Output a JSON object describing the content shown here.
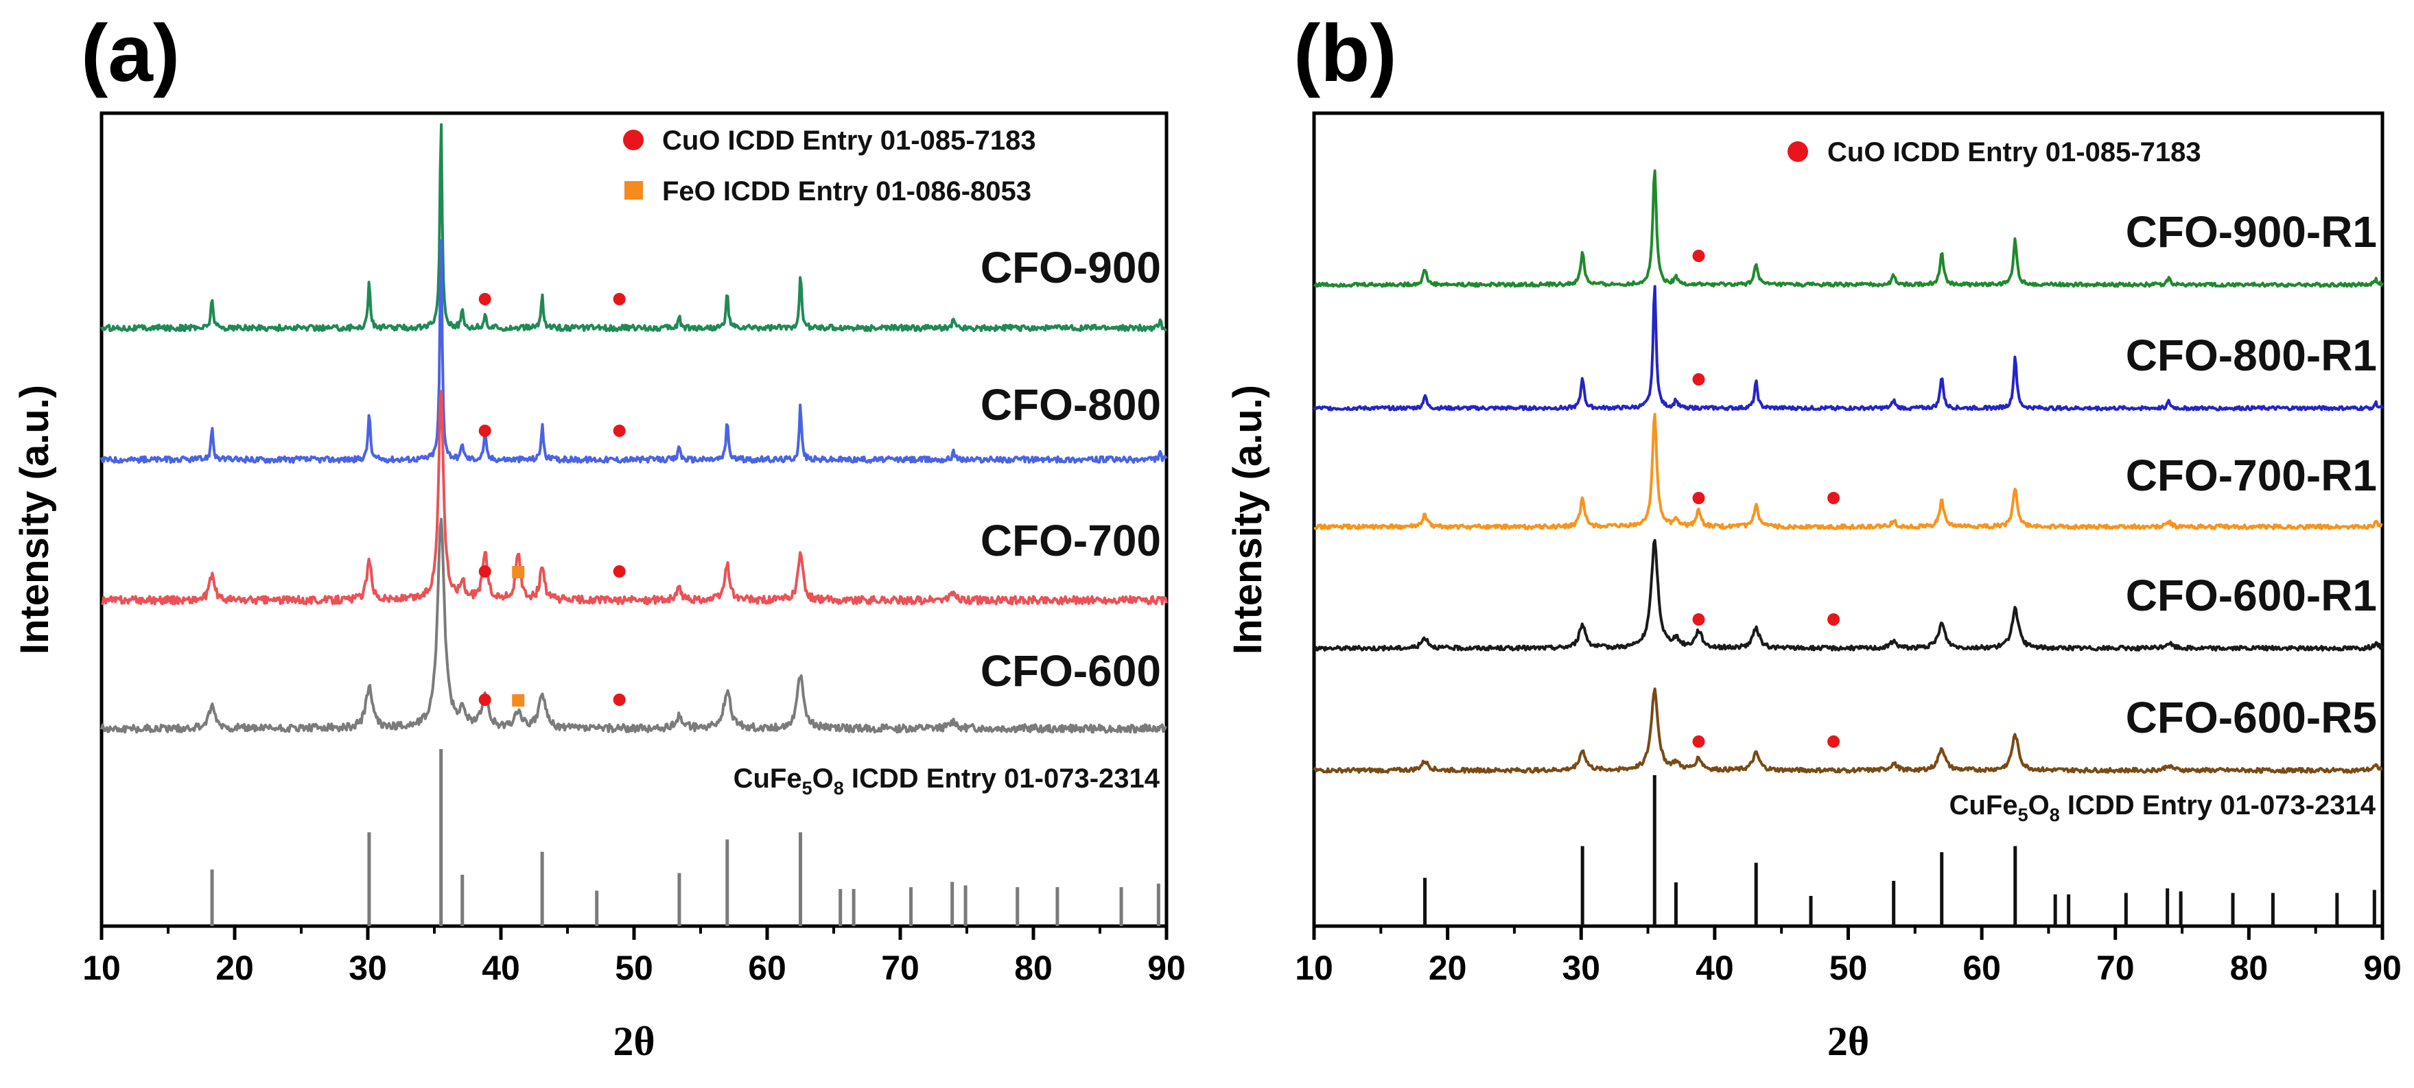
{
  "chart_data": [
    {
      "panel_label": "(a)",
      "type": "line",
      "title": "",
      "xlabel": "2θ",
      "ylabel": "Intensity (a.u.)",
      "xlim": [
        10,
        90
      ],
      "x_ticks": [
        10,
        20,
        30,
        40,
        50,
        60,
        70,
        80,
        90
      ],
      "legend": [
        {
          "marker": "circle",
          "color": "#e8161b",
          "text": "CuO ICDD Entry 01-085-7183"
        },
        {
          "marker": "square",
          "color": "#f58a1f",
          "text": "FeO ICDD Entry 01-086-8053"
        }
      ],
      "series": [
        {
          "name": "CFO-900",
          "color": "#1f8a55",
          "peaks": [
            [
              18.3,
              0.13
            ],
            [
              30.1,
              0.2
            ],
            [
              35.5,
              0.88
            ],
            [
              37.1,
              0.07
            ],
            [
              38.8,
              0.06
            ],
            [
              43.1,
              0.14
            ],
            [
              53.4,
              0.05
            ],
            [
              57.0,
              0.15
            ],
            [
              62.5,
              0.23
            ],
            [
              74.0,
              0.04
            ],
            [
              89.5,
              0.03
            ]
          ],
          "width": 0.1,
          "noise": 0.012,
          "cuo_markers": [
            38.8,
            48.9
          ],
          "feo_markers": []
        },
        {
          "name": "CFO-800",
          "color": "#4a63e6",
          "peaks": [
            [
              18.3,
              0.14
            ],
            [
              30.1,
              0.2
            ],
            [
              35.5,
              0.95
            ],
            [
              37.1,
              0.07
            ],
            [
              38.8,
              0.12
            ],
            [
              43.1,
              0.15
            ],
            [
              53.4,
              0.06
            ],
            [
              57.0,
              0.17
            ],
            [
              62.5,
              0.23
            ],
            [
              74.0,
              0.04
            ],
            [
              89.5,
              0.03
            ]
          ],
          "width": 0.1,
          "noise": 0.012,
          "cuo_markers": [
            38.8,
            48.9
          ],
          "feo_markers": []
        },
        {
          "name": "CFO-700",
          "color": "#ec5155",
          "peaks": [
            [
              18.3,
              0.11
            ],
            [
              30.1,
              0.16
            ],
            [
              35.5,
              0.88
            ],
            [
              37.1,
              0.07
            ],
            [
              38.8,
              0.2
            ],
            [
              41.3,
              0.19
            ],
            [
              43.1,
              0.13
            ],
            [
              53.4,
              0.05
            ],
            [
              57.0,
              0.15
            ],
            [
              62.5,
              0.2
            ],
            [
              74.0,
              0.03
            ]
          ],
          "width": 0.22,
          "noise": 0.016,
          "cuo_markers": [
            38.8,
            48.9
          ],
          "feo_markers": [
            41.3
          ]
        },
        {
          "name": "CFO-600",
          "color": "#7b7b7b",
          "peaks": [
            [
              18.3,
              0.09
            ],
            [
              30.1,
              0.17
            ],
            [
              35.5,
              0.88
            ],
            [
              37.1,
              0.06
            ],
            [
              38.8,
              0.13
            ],
            [
              41.3,
              0.07
            ],
            [
              43.1,
              0.14
            ],
            [
              53.4,
              0.05
            ],
            [
              57.0,
              0.16
            ],
            [
              62.5,
              0.22
            ],
            [
              74.0,
              0.03
            ]
          ],
          "width": 0.3,
          "noise": 0.016,
          "cuo_markers": [
            38.8,
            48.9
          ],
          "feo_markers": [
            41.3
          ]
        }
      ],
      "reference": {
        "label": "CuFe5O8 ICDD Entry 01-073-2314",
        "label_parts": [
          "CuFe",
          "5",
          "O",
          "8",
          " ICDD Entry 01-073-2314"
        ],
        "lines": [
          [
            18.3,
            0.32
          ],
          [
            30.1,
            0.53
          ],
          [
            35.5,
            1.0
          ],
          [
            37.1,
            0.29
          ],
          [
            43.1,
            0.42
          ],
          [
            47.2,
            0.2
          ],
          [
            53.4,
            0.3
          ],
          [
            57.0,
            0.49
          ],
          [
            62.5,
            0.53
          ],
          [
            65.5,
            0.21
          ],
          [
            66.5,
            0.21
          ],
          [
            70.8,
            0.22
          ],
          [
            73.9,
            0.25
          ],
          [
            74.9,
            0.23
          ],
          [
            78.8,
            0.22
          ],
          [
            81.8,
            0.22
          ],
          [
            86.6,
            0.22
          ],
          [
            89.4,
            0.24
          ]
        ]
      }
    },
    {
      "panel_label": "(b)",
      "type": "line",
      "title": "",
      "xlabel": "2θ",
      "ylabel": "Intensity (a.u.)",
      "xlim": [
        10,
        90
      ],
      "x_ticks": [
        10,
        20,
        30,
        40,
        50,
        60,
        70,
        80,
        90
      ],
      "legend": [
        {
          "marker": "circle",
          "color": "#e8161b",
          "text": "CuO ICDD Entry 01-085-7183"
        }
      ],
      "series": [
        {
          "name": "CFO-900-R1",
          "color": "#1f8a2d",
          "peaks": [
            [
              18.3,
              0.12
            ],
            [
              30.1,
              0.25
            ],
            [
              35.5,
              0.9
            ],
            [
              37.1,
              0.06
            ],
            [
              43.1,
              0.17
            ],
            [
              53.4,
              0.07
            ],
            [
              57.0,
              0.25
            ],
            [
              62.5,
              0.35
            ],
            [
              74.0,
              0.05
            ],
            [
              89.5,
              0.04
            ]
          ],
          "width": 0.16,
          "noise": 0.014,
          "cuo_markers": [
            38.8
          ],
          "feo_markers": []
        },
        {
          "name": "CFO-800-R1",
          "color": "#2424c8",
          "peaks": [
            [
              18.3,
              0.1
            ],
            [
              30.1,
              0.24
            ],
            [
              35.5,
              0.94
            ],
            [
              37.1,
              0.06
            ],
            [
              43.1,
              0.2
            ],
            [
              53.4,
              0.06
            ],
            [
              57.0,
              0.25
            ],
            [
              62.5,
              0.4
            ],
            [
              74.0,
              0.05
            ],
            [
              89.5,
              0.04
            ]
          ],
          "width": 0.14,
          "noise": 0.014,
          "cuo_markers": [
            38.8
          ],
          "feo_markers": []
        },
        {
          "name": "CFO-700-R1",
          "color": "#f7941d",
          "peaks": [
            [
              18.3,
              0.09
            ],
            [
              30.1,
              0.21
            ],
            [
              35.5,
              0.86
            ],
            [
              37.1,
              0.06
            ],
            [
              38.8,
              0.13
            ],
            [
              43.1,
              0.16
            ],
            [
              53.4,
              0.05
            ],
            [
              57.0,
              0.2
            ],
            [
              62.5,
              0.3
            ],
            [
              74.0,
              0.04
            ],
            [
              89.5,
              0.03
            ]
          ],
          "width": 0.2,
          "noise": 0.016,
          "cuo_markers": [
            38.8,
            48.9
          ],
          "feo_markers": []
        },
        {
          "name": "CFO-600-R1",
          "color": "#1a1a1a",
          "peaks": [
            [
              18.3,
              0.08
            ],
            [
              30.1,
              0.18
            ],
            [
              35.5,
              0.82
            ],
            [
              37.1,
              0.06
            ],
            [
              38.8,
              0.13
            ],
            [
              43.1,
              0.15
            ],
            [
              53.4,
              0.05
            ],
            [
              57.0,
              0.19
            ],
            [
              62.5,
              0.3
            ],
            [
              74.0,
              0.04
            ],
            [
              89.5,
              0.03
            ]
          ],
          "width": 0.3,
          "noise": 0.016,
          "cuo_markers": [
            38.8,
            48.9
          ],
          "feo_markers": []
        },
        {
          "name": "CFO-600-R5",
          "color": "#7a4a14",
          "peaks": [
            [
              18.3,
              0.07
            ],
            [
              30.1,
              0.15
            ],
            [
              35.5,
              0.62
            ],
            [
              37.1,
              0.05
            ],
            [
              38.8,
              0.09
            ],
            [
              43.1,
              0.13
            ],
            [
              53.4,
              0.05
            ],
            [
              57.0,
              0.17
            ],
            [
              62.5,
              0.27
            ],
            [
              74.0,
              0.04
            ],
            [
              89.5,
              0.03
            ]
          ],
          "width": 0.3,
          "noise": 0.016,
          "cuo_markers": [
            38.8,
            48.9
          ],
          "feo_markers": []
        }
      ],
      "reference": {
        "label": "CuFe5O8 ICDD Entry 01-073-2314",
        "label_parts": [
          "CuFe",
          "5",
          "O",
          "8",
          " ICDD Entry 01-073-2314"
        ],
        "lines": [
          [
            18.3,
            0.32
          ],
          [
            30.1,
            0.53
          ],
          [
            35.5,
            1.0
          ],
          [
            37.1,
            0.29
          ],
          [
            43.1,
            0.42
          ],
          [
            47.2,
            0.2
          ],
          [
            53.4,
            0.3
          ],
          [
            57.0,
            0.49
          ],
          [
            62.5,
            0.53
          ],
          [
            65.5,
            0.21
          ],
          [
            66.5,
            0.21
          ],
          [
            70.8,
            0.22
          ],
          [
            73.9,
            0.25
          ],
          [
            74.9,
            0.23
          ],
          [
            78.8,
            0.22
          ],
          [
            81.8,
            0.22
          ],
          [
            86.6,
            0.22
          ],
          [
            89.4,
            0.24
          ]
        ]
      }
    }
  ]
}
